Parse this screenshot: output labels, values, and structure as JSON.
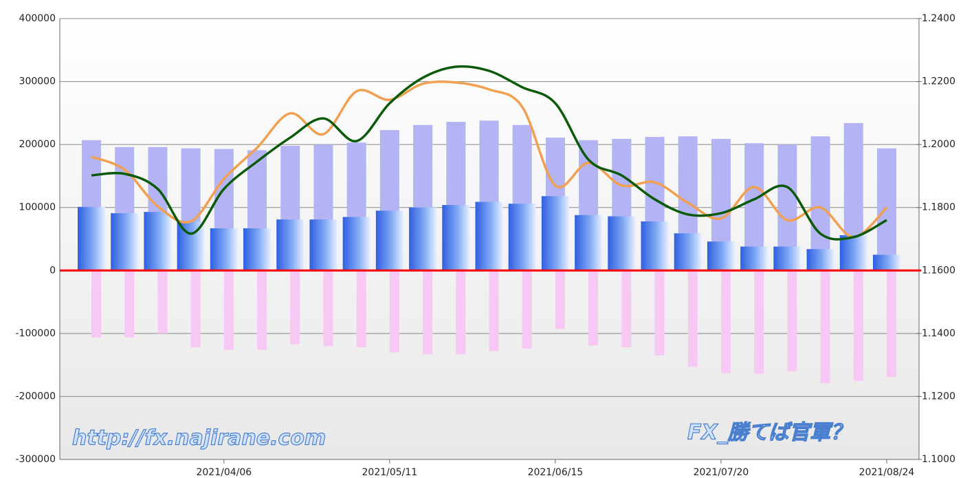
{
  "chart_data": {
    "type": "bar",
    "categories": [
      null,
      null,
      null,
      null,
      "2021/04/06",
      null,
      null,
      null,
      null,
      "2021/05/11",
      null,
      null,
      null,
      null,
      "2021/06/15",
      null,
      null,
      null,
      null,
      "2021/07/20",
      null,
      null,
      null,
      null,
      "2021/08/24"
    ],
    "ylim": [
      -300000,
      400000
    ],
    "yticks": [
      -300000,
      -200000,
      -100000,
      0,
      100000,
      200000,
      300000,
      400000
    ],
    "y2lim": [
      1.1,
      1.24
    ],
    "y2ticks": [
      {
        "value": 1.1,
        "label": "1.1000"
      },
      {
        "value": 1.12,
        "label": "1.1200"
      },
      {
        "value": 1.14,
        "label": "1.1400"
      },
      {
        "value": 1.16,
        "label": "1.1600"
      },
      {
        "value": 1.18,
        "label": "1.1800"
      },
      {
        "value": 1.2,
        "label": "1.2000"
      },
      {
        "value": 1.22,
        "label": "1.2200"
      },
      {
        "value": 1.24,
        "label": "1.2400"
      }
    ],
    "grid": true,
    "zero_line_color": "#ff0000",
    "series": [
      {
        "type": "bar",
        "color": "#b4b4f4",
        "values": [
          207000,
          196000,
          196000,
          194000,
          193000,
          191000,
          198000,
          200000,
          203000,
          223000,
          231000,
          236000,
          238000,
          231000,
          211000,
          207000,
          209000,
          212000,
          213000,
          209000,
          202000,
          200000,
          213000,
          234000,
          194000
        ]
      },
      {
        "type": "bar",
        "color": "#f7c8f4",
        "values": [
          -106000,
          -106000,
          -100000,
          -122000,
          -126000,
          -126000,
          -117000,
          -120000,
          -122000,
          -130000,
          -133000,
          -133000,
          -128000,
          -124000,
          -93000,
          -119000,
          -122000,
          -135000,
          -153000,
          -163000,
          -164000,
          -160000,
          -179000,
          -175000,
          -169000
        ]
      },
      {
        "type": "bar",
        "color": "#3f6fe8",
        "values": [
          101000,
          91000,
          93000,
          78000,
          67000,
          67000,
          81000,
          81000,
          85000,
          95000,
          100000,
          104000,
          109000,
          106000,
          118000,
          88000,
          86000,
          78000,
          59000,
          46000,
          38000,
          38000,
          34000,
          56000,
          25000
        ]
      },
      {
        "type": "line",
        "axis": "y2",
        "color": "#f0a050",
        "values": [
          1.1961,
          1.192,
          1.1804,
          1.1756,
          1.1891,
          1.199,
          1.2099,
          1.2033,
          1.2169,
          1.2142,
          1.2193,
          1.2197,
          1.2175,
          1.212,
          1.187,
          1.1942,
          1.187,
          1.188,
          1.1815,
          1.1765,
          1.1865,
          1.176,
          1.18,
          1.1706,
          1.18
        ]
      },
      {
        "type": "line",
        "axis": "y2",
        "color": "#0a5a0a",
        "values": [
          1.1902,
          1.1907,
          1.1859,
          1.1717,
          1.1859,
          1.1946,
          1.2022,
          1.2083,
          1.2011,
          1.2131,
          1.2212,
          1.2247,
          1.2234,
          1.2182,
          1.2131,
          1.1952,
          1.1902,
          1.1826,
          1.1778,
          1.1782,
          1.1826,
          1.1865,
          1.1717,
          1.1706,
          1.176
        ]
      }
    ],
    "annotations": [
      "http://fx.najirane.com",
      "FX_勝てば官軍？"
    ]
  }
}
